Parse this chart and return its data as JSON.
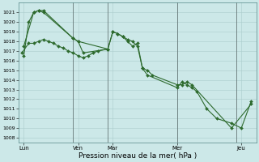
{
  "background_color": "#cce8e8",
  "grid_color": "#aacccc",
  "line_color": "#2d6a2d",
  "marker_color": "#2d6a2d",
  "xlabel": "Pression niveau de la mer( hPa )",
  "ylim": [
    1007.5,
    1022.0
  ],
  "yticks": [
    1008,
    1009,
    1010,
    1011,
    1012,
    1013,
    1014,
    1015,
    1016,
    1017,
    1018,
    1019,
    1020,
    1021
  ],
  "xlim": [
    0,
    24
  ],
  "day_ticks": [
    0.5,
    6,
    9.5,
    16,
    22.5
  ],
  "day_labels": [
    "Lun",
    "Ven",
    "Mar",
    "Mer",
    "Jeu"
  ],
  "vline_positions": [
    5.5,
    9.0,
    16.0,
    22.0
  ],
  "series1_x": [
    0.5,
    1.0,
    1.5,
    2.0,
    2.5,
    5.5,
    6.0,
    6.5,
    9.0,
    9.5,
    10.0,
    10.5,
    11.0,
    11.5,
    12.0,
    12.5,
    13.0,
    13.5,
    16.0,
    16.5,
    17.0,
    17.5,
    21.5,
    23.5
  ],
  "series1_y": [
    1016.5,
    1020.0,
    1021.0,
    1021.2,
    1021.0,
    1018.3,
    1018.0,
    1016.8,
    1017.2,
    1019.0,
    1018.8,
    1018.5,
    1018.0,
    1017.5,
    1017.8,
    1015.2,
    1015.0,
    1014.5,
    1013.5,
    1013.5,
    1013.8,
    1013.5,
    1009.0,
    1011.5
  ],
  "series2_x": [
    0.5,
    1.5,
    2.0,
    2.5,
    5.5,
    6.0,
    9.0,
    9.5,
    10.0,
    10.5,
    11.0,
    11.5,
    12.0,
    12.5,
    13.0,
    16.0,
    16.5,
    17.0,
    17.5,
    18.0,
    19.0,
    20.0,
    21.5,
    22.5,
    23.5
  ],
  "series2_y": [
    1017.5,
    1021.0,
    1021.2,
    1021.2,
    1018.3,
    1018.0,
    1017.2,
    1019.0,
    1018.8,
    1018.5,
    1018.2,
    1018.0,
    1017.5,
    1015.2,
    1014.5,
    1013.2,
    1013.8,
    1013.5,
    1013.2,
    1012.8,
    1011.0,
    1010.0,
    1009.5,
    1009.0,
    1011.8
  ],
  "series3_x": [
    0.3,
    1.0,
    1.5,
    2.0,
    2.5,
    3.0,
    3.5,
    4.0,
    4.5,
    5.0,
    5.5,
    6.0,
    6.5,
    7.0,
    7.5,
    8.0,
    9.0
  ],
  "series3_y": [
    1016.8,
    1017.8,
    1017.8,
    1018.0,
    1018.2,
    1018.0,
    1017.8,
    1017.5,
    1017.3,
    1017.0,
    1016.8,
    1016.5,
    1016.3,
    1016.5,
    1016.8,
    1017.0,
    1017.2
  ]
}
